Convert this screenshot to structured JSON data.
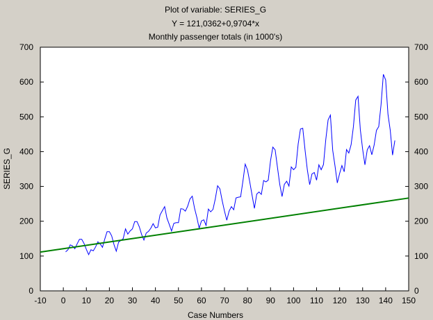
{
  "chart_data": {
    "type": "line",
    "title": "Plot of variable: SERIES_G",
    "subtitle": "Y = 121,0362+0,9704*x",
    "subtitle2": "Monthly passenger totals (in 1000's)",
    "xlabel": "Case Numbers",
    "ylabel": "SERIES_G",
    "xlim": [
      -10,
      150
    ],
    "ylim": [
      0,
      700
    ],
    "x_ticks": [
      -10,
      0,
      10,
      20,
      30,
      40,
      50,
      60,
      70,
      80,
      90,
      100,
      110,
      120,
      130,
      140,
      150
    ],
    "y_ticks": [
      0,
      100,
      200,
      300,
      400,
      500,
      600,
      700
    ],
    "grid": false,
    "series": [
      {
        "color": "#0000ff",
        "x_start": 1,
        "values": [
          112,
          118,
          132,
          129,
          121,
          135,
          148,
          148,
          136,
          119,
          104,
          118,
          115,
          126,
          141,
          135,
          125,
          149,
          170,
          170,
          158,
          133,
          114,
          140,
          145,
          150,
          178,
          163,
          172,
          178,
          199,
          199,
          184,
          162,
          146,
          166,
          171,
          180,
          193,
          181,
          183,
          218,
          230,
          242,
          209,
          191,
          172,
          194,
          196,
          196,
          236,
          235,
          229,
          243,
          264,
          272,
          237,
          211,
          180,
          201,
          204,
          188,
          235,
          227,
          234,
          264,
          302,
          293,
          259,
          229,
          203,
          229,
          242,
          233,
          267,
          269,
          270,
          315,
          364,
          347,
          312,
          274,
          237,
          278,
          284,
          277,
          317,
          313,
          318,
          374,
          413,
          405,
          355,
          306,
          271,
          306,
          315,
          301,
          356,
          348,
          355,
          422,
          465,
          467,
          404,
          347,
          305,
          336,
          340,
          318,
          362,
          348,
          363,
          435,
          491,
          505,
          404,
          359,
          310,
          337,
          360,
          342,
          406,
          396,
          420,
          472,
          548,
          559,
          463,
          407,
          362,
          405,
          417,
          391,
          419,
          461,
          472,
          535,
          622,
          606,
          508,
          461,
          390,
          432
        ]
      },
      {
        "color": "#008000",
        "intercept": 121.0362,
        "slope": 0.9704
      }
    ]
  }
}
